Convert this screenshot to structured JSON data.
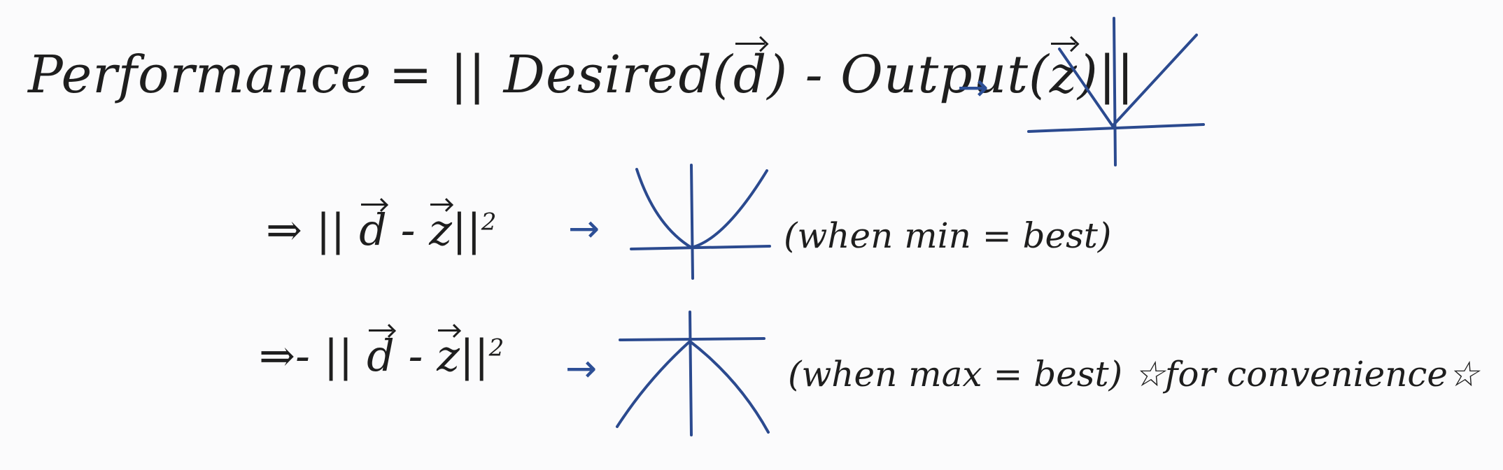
{
  "line1": {
    "lhs": "Performance",
    "eq": "=",
    "norm_open": "||",
    "desired_label": "Desired",
    "desired_arg_open": "(",
    "vec_d": "d",
    "desired_arg_close": ")",
    "minus": "-",
    "output_label": "Output",
    "output_arg_open": "(",
    "vec_z": "z",
    "output_arg_close": ")",
    "norm_close": "||",
    "arrow": "→",
    "graph_icon": "absolute-value-v-graph-icon"
  },
  "line2": {
    "implies": "⇒",
    "norm_open": "||",
    "vec_d": "d",
    "minus": "-",
    "vec_z": "z",
    "norm_close": "||",
    "exponent": "2",
    "arrow": "→",
    "graph_icon": "upward-parabola-graph-icon",
    "note": "(when min = best)"
  },
  "line3": {
    "implies": "⇒",
    "neg": "-",
    "norm_open": "||",
    "vec_d": "d",
    "minus": "-",
    "vec_z": "z",
    "norm_close": "||",
    "exponent": "2",
    "arrow": "→",
    "graph_icon": "downward-parabola-graph-icon",
    "note": "(when max = best)",
    "star_left": "☆",
    "comment": "for convenience",
    "star_right": "☆"
  },
  "colors": {
    "ink": "#1e1e1e",
    "graph_ink": "#2b4a8f",
    "paper": "#fbfbfc"
  }
}
